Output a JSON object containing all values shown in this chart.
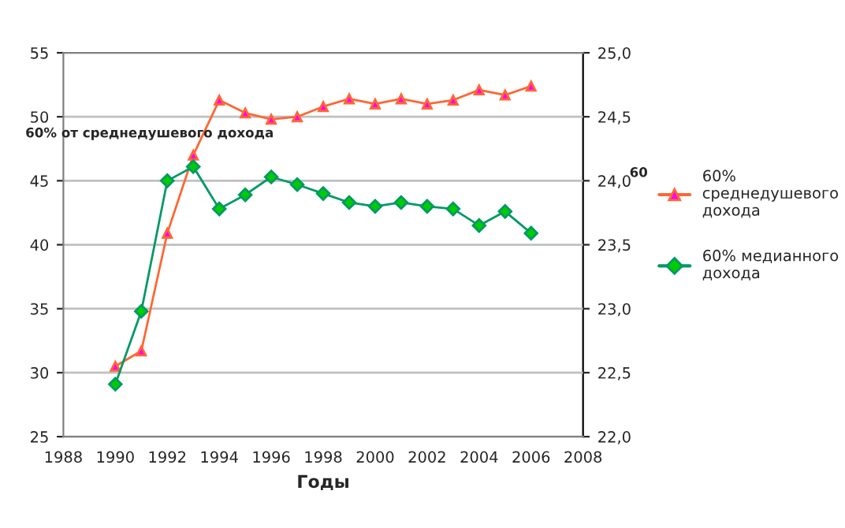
{
  "chart_data": {
    "type": "line",
    "xlabel": "Годы",
    "x": [
      1990,
      1991,
      1992,
      1993,
      1994,
      1995,
      1996,
      1997,
      1998,
      1999,
      2000,
      2001,
      2002,
      2003,
      2004,
      2005,
      2006
    ],
    "series": [
      {
        "name": "60% среднедушевого дохода",
        "color": "#ff6633",
        "marker": "triangle",
        "values": [
          30.5,
          31.7,
          40.9,
          47.0,
          51.3,
          50.3,
          49.8,
          50.0,
          50.8,
          51.4,
          51.0,
          51.4,
          51.0,
          51.3,
          52.1,
          51.7,
          52.4
        ]
      },
      {
        "name": "60% медианного дохода",
        "color": "#009966",
        "marker": "diamond",
        "values": [
          29.1,
          34.8,
          45.0,
          46.1,
          42.8,
          43.9,
          45.3,
          44.7,
          44.0,
          43.3,
          43.0,
          43.3,
          43.0,
          42.8,
          41.5,
          42.6,
          40.9
        ]
      }
    ],
    "xlim": [
      1988,
      2008
    ],
    "xticks": [
      1988,
      1990,
      1992,
      1994,
      1996,
      1998,
      2000,
      2002,
      2004,
      2006,
      2008
    ],
    "ylim": [
      25,
      55
    ],
    "yticks": [
      25,
      30,
      35,
      40,
      45,
      50,
      55
    ],
    "y2lim": [
      22.0,
      25.0
    ],
    "y2ticks": [
      {
        "value": 22.0,
        "label": "22,0"
      },
      {
        "value": 22.5,
        "label": "22,5"
      },
      {
        "value": 23.0,
        "label": "23,0"
      },
      {
        "value": 23.5,
        "label": "23,5"
      },
      {
        "value": 24.0,
        "label": "24,0"
      },
      {
        "value": 24.5,
        "label": "24,5"
      },
      {
        "value": 25.0,
        "label": "25,0"
      }
    ],
    "annotations": [
      "60% от среднедушевого дохода",
      "60"
    ],
    "grid": "y",
    "legend": "right"
  }
}
